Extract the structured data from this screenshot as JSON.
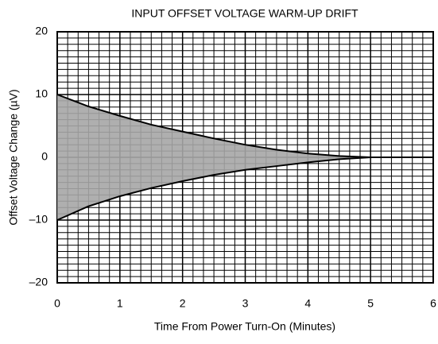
{
  "chart_data": {
    "type": "envelope",
    "title": "INPUT OFFSET VOLTAGE WARM-UP DRIFT",
    "xlabel": "Time From Power Turn-On (Minutes)",
    "ylabel": "Offset Voltage Change (µV)",
    "x": [
      0,
      0.5,
      1,
      1.5,
      2,
      2.5,
      3,
      3.5,
      4,
      4.5,
      5,
      5.5,
      6
    ],
    "series": [
      {
        "color": "#000000",
        "values": [
          10,
          8.1,
          6.6,
          5.2,
          4.1,
          3.0,
          2.0,
          1.2,
          0.6,
          0.2,
          0,
          0,
          0
        ]
      },
      {
        "color": "#000000",
        "values": [
          -10,
          -7.8,
          -6.2,
          -4.9,
          -3.8,
          -2.8,
          -2.0,
          -1.4,
          -0.8,
          -0.3,
          0,
          0,
          0
        ]
      }
    ],
    "fill_color": "#a6a6a6",
    "xlim": [
      0,
      6
    ],
    "xticks": [
      0,
      1,
      2,
      3,
      4,
      5,
      6
    ],
    "ylim": [
      -20,
      20
    ],
    "yticks": [
      {
        "value": -20,
        "label": "–20"
      },
      {
        "value": -10,
        "label": "–10"
      },
      0,
      10,
      20
    ],
    "grid": true,
    "minor_grid": {
      "x_per_major": 6,
      "y_per_major": 10
    }
  }
}
